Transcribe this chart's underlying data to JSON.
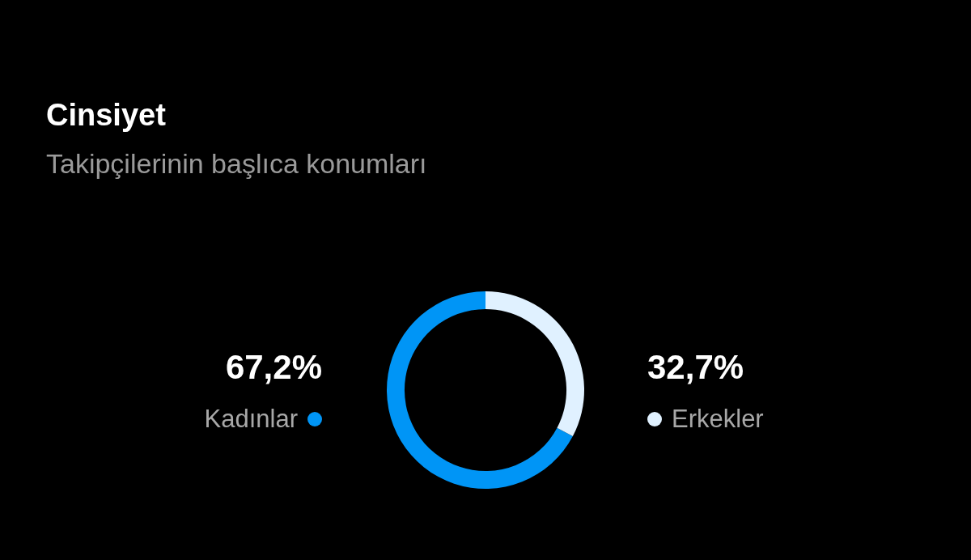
{
  "chart_data": {
    "type": "donut",
    "title": "Cinsiyet",
    "subtitle": "Takipçilerinin başlıca konumları",
    "categories": [
      "Kadınlar",
      "Erkekler"
    ],
    "values": [
      67.2,
      32.7
    ],
    "colors": [
      "#0095f6",
      "#e0f1ff"
    ],
    "value_labels": [
      "67,2%",
      "32,7%"
    ]
  }
}
